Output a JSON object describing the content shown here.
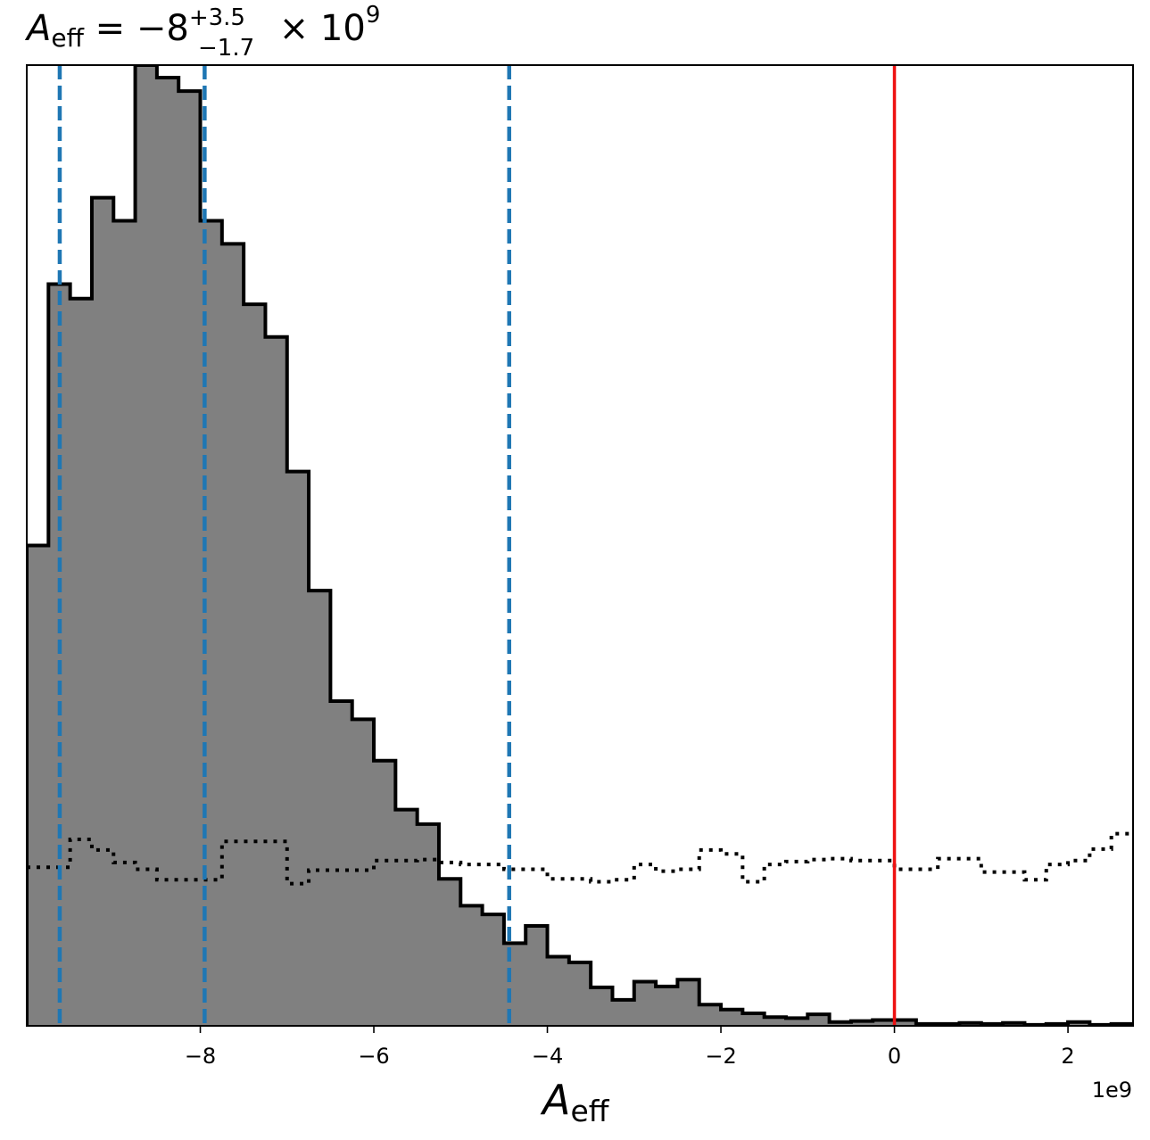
{
  "title": {
    "symbol": "A",
    "subscript": "eff",
    "equals": " = −8",
    "upper_error": "+3.5",
    "lower_error": "−1.7",
    "times": " × 10",
    "exponent": "9"
  },
  "chart_data": {
    "type": "histogram",
    "x_unit_multiplier": 1000000000,
    "xlim": [
      -10.0,
      2.75
    ],
    "ylim": [
      0,
      1
    ],
    "x_ticks": [
      -8,
      -6,
      -4,
      -2,
      0,
      2
    ],
    "x_tick_labels": [
      "−8",
      "−6",
      "−4",
      "−2",
      "0",
      "2"
    ],
    "xlabel": {
      "symbol": "A",
      "subscript": "eff"
    },
    "ylabel": "",
    "y_ticks_shown": false,
    "offset_label": "1e9",
    "grid": false,
    "bin_edges": [
      -10.0,
      -9.75,
      -9.5,
      -9.25,
      -9.0,
      -8.75,
      -8.5,
      -8.25,
      -8.0,
      -7.75,
      -7.5,
      -7.25,
      -7.0,
      -6.75,
      -6.5,
      -6.25,
      -6.0,
      -5.75,
      -5.5,
      -5.25,
      -5.0,
      -4.75,
      -4.5,
      -4.25,
      -4.0,
      -3.75,
      -3.5,
      -3.25,
      -3.0,
      -2.75,
      -2.5,
      -2.25,
      -2.0,
      -1.75,
      -1.5,
      -1.25,
      -1.0,
      -0.75,
      -0.5,
      -0.25,
      0.0,
      0.25,
      0.5,
      0.75,
      1.0,
      1.25,
      1.5,
      1.75,
      2.0,
      2.25,
      2.5,
      2.75
    ],
    "series": [
      {
        "style": "filled-step",
        "color": "#808080",
        "edge_color": "#000000",
        "values": [
          0.5,
          0.772,
          0.757,
          0.862,
          0.838,
          1.0,
          0.987,
          0.973,
          0.838,
          0.814,
          0.751,
          0.717,
          0.577,
          0.453,
          0.338,
          0.319,
          0.276,
          0.225,
          0.21,
          0.153,
          0.125,
          0.116,
          0.086,
          0.104,
          0.072,
          0.066,
          0.04,
          0.027,
          0.046,
          0.041,
          0.048,
          0.022,
          0.017,
          0.013,
          0.009,
          0.008,
          0.012,
          0.004,
          0.005,
          0.006,
          0.006,
          0.002,
          0.002,
          0.003,
          0.002,
          0.003,
          0.001,
          0.002,
          0.004,
          0.001,
          0.002
        ]
      },
      {
        "style": "dotted-step",
        "color": "#000000",
        "values": [
          0.165,
          0.165,
          0.194,
          0.183,
          0.17,
          0.163,
          0.152,
          0.152,
          0.152,
          0.192,
          0.192,
          0.192,
          0.148,
          0.162,
          0.162,
          0.162,
          0.172,
          0.172,
          0.173,
          0.17,
          0.168,
          0.168,
          0.163,
          0.163,
          0.153,
          0.153,
          0.15,
          0.152,
          0.168,
          0.161,
          0.163,
          0.183,
          0.179,
          0.15,
          0.168,
          0.171,
          0.173,
          0.174,
          0.172,
          0.172,
          0.163,
          0.163,
          0.174,
          0.174,
          0.16,
          0.16,
          0.152,
          0.168,
          0.172,
          0.184,
          0.2,
          0.2
        ]
      }
    ],
    "vertical_lines": [
      {
        "x": -9.62,
        "style": "dashed",
        "color": "#1f77b4",
        "role": "lower quantile"
      },
      {
        "x": -7.95,
        "style": "dashed",
        "color": "#1f77b4",
        "role": "median"
      },
      {
        "x": -4.44,
        "style": "dashed",
        "color": "#1f77b4",
        "role": "upper quantile"
      },
      {
        "x": 0.0,
        "style": "solid",
        "color": "#ee1111",
        "role": "injected value"
      }
    ]
  }
}
